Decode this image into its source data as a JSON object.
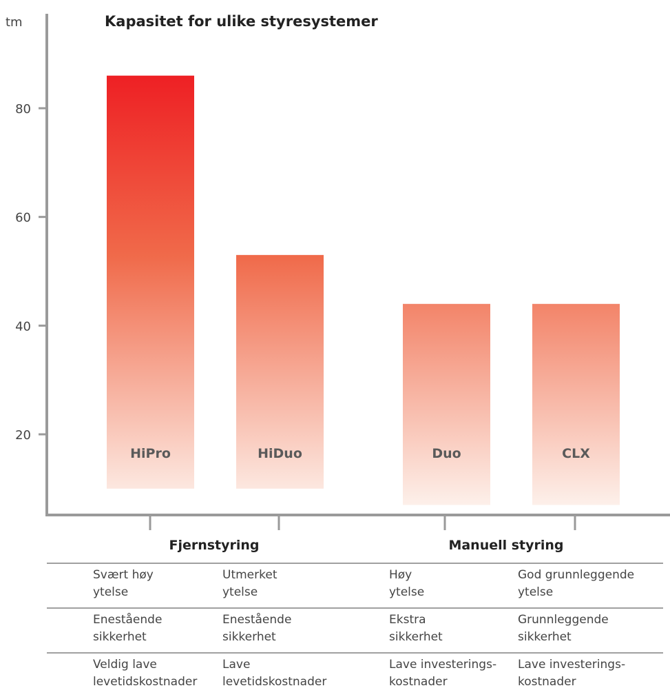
{
  "chart_data": {
    "type": "bar",
    "title": "Kapasitet for ulike styresystemer",
    "ylabel": "tm",
    "xlabel": "",
    "yticks": [
      20,
      40,
      60,
      80
    ],
    "ylim": [
      0,
      95
    ],
    "grid": false,
    "categories": [
      "HiPro",
      "HiDuo",
      "Duo",
      "CLX"
    ],
    "bars": [
      {
        "label": "HiPro",
        "bottom": 10,
        "top": 86
      },
      {
        "label": "HiDuo",
        "bottom": 10,
        "top": 53
      },
      {
        "label": "Duo",
        "bottom": 7,
        "top": 44
      },
      {
        "label": "CLX",
        "bottom": 7,
        "top": 44
      }
    ],
    "groups": [
      {
        "label": "Fjernstyring",
        "categories": [
          "HiPro",
          "HiDuo"
        ]
      },
      {
        "label": "Manuell styring",
        "categories": [
          "Duo",
          "CLX"
        ]
      }
    ],
    "table": {
      "rows": [
        [
          [
            "Svært høy",
            "ytelse"
          ],
          [
            "Utmerket",
            "ytelse"
          ],
          [
            "Høy",
            "ytelse"
          ],
          [
            "God grunnleggende",
            "ytelse"
          ]
        ],
        [
          [
            "Enestående",
            "sikkerhet"
          ],
          [
            "Enestående",
            "sikkerhet"
          ],
          [
            "Ekstra",
            "sikkerhet"
          ],
          [
            "Grunnleggende",
            "sikkerhet"
          ]
        ],
        [
          [
            "Veldig lave",
            "levetidskostnader"
          ],
          [
            "Lave",
            "levetidskostnader"
          ],
          [
            "Lave investerings-",
            "kostnader"
          ],
          [
            "Lave investerings-",
            "kostnader"
          ]
        ]
      ]
    },
    "colors": {
      "bar_top": "#ee2024",
      "bar_mid": "#f06a4a",
      "bar_bottom": "#fdf0ea",
      "axis": "#9a9a9a",
      "divider": "#a0a0a0"
    }
  }
}
